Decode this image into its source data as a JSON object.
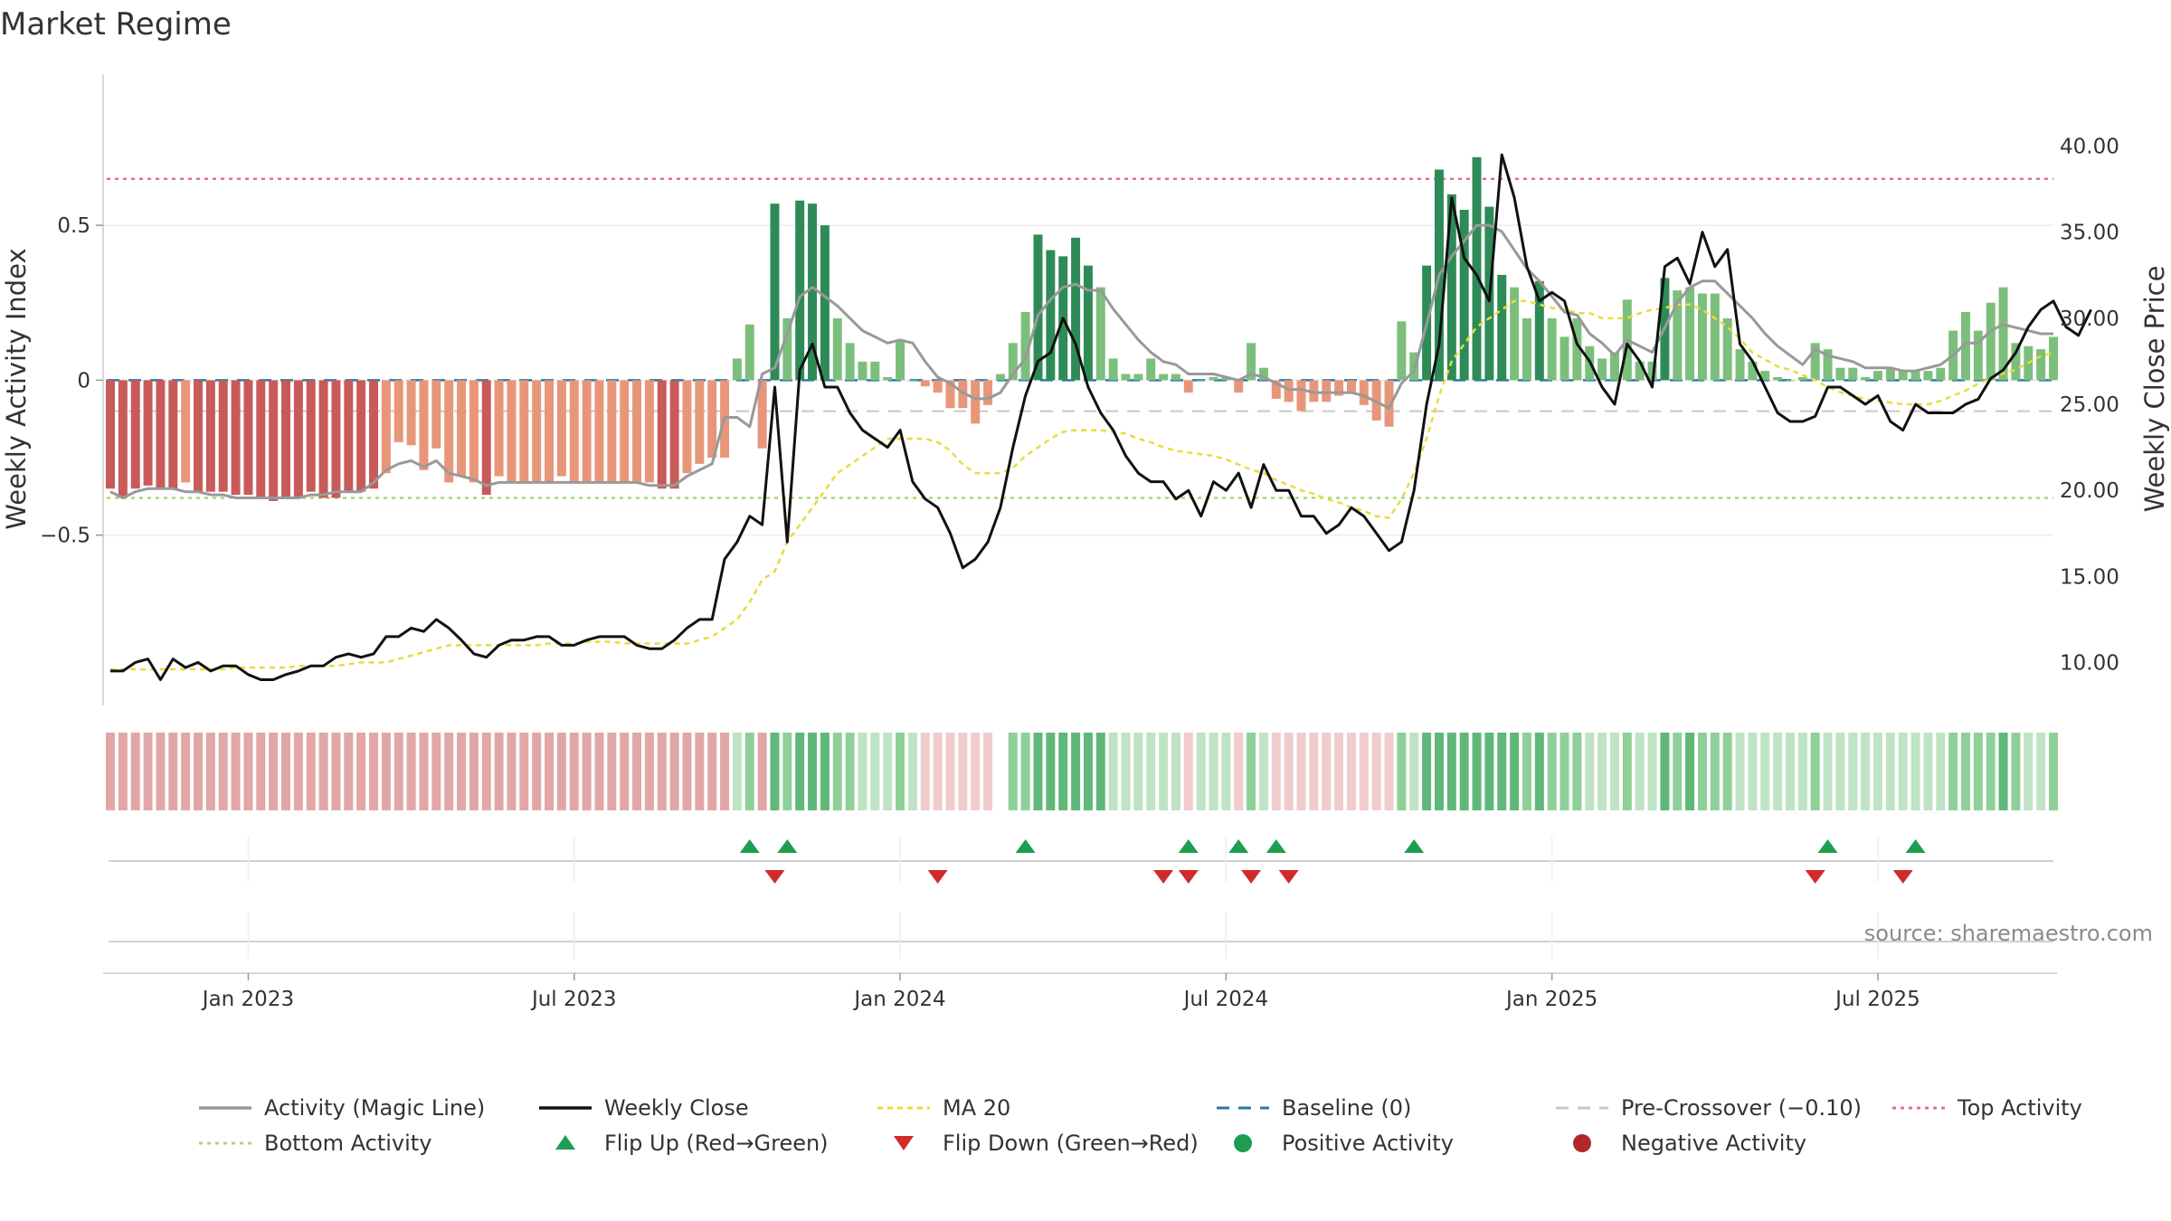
{
  "chart_data": {
    "type": "bar",
    "title": "Market Regime",
    "source": "source: sharemaestro.com",
    "ylabel_left": "Weekly Activity Index",
    "ylabel_right": "Weekly Close Price",
    "y_left_ticks": [
      {
        "v": 0.5,
        "label": "0.5"
      },
      {
        "v": 0,
        "label": "0"
      },
      {
        "v": -0.5,
        "label": "−0.5"
      }
    ],
    "y_right_ticks": [
      {
        "v": 40,
        "label": "40.00"
      },
      {
        "v": 35,
        "label": "35.00"
      },
      {
        "v": 30,
        "label": "30.00"
      },
      {
        "v": 25,
        "label": "25.00"
      },
      {
        "v": 20,
        "label": "20.00"
      },
      {
        "v": 15,
        "label": "15.00"
      },
      {
        "v": 10,
        "label": "10.00"
      }
    ],
    "x_ticks": [
      "Jan 2023",
      "Jul 2023",
      "Jan 2024",
      "Jul 2024",
      "Jan 2025",
      "Jul 2025"
    ],
    "x_tick_index": [
      11,
      37,
      63,
      89,
      115,
      141
    ],
    "ylim_left": [
      -1.05,
      0.95
    ],
    "ylim_right": [
      7.5,
      43.5
    ],
    "reference_lines": {
      "top_activity": 0.65,
      "bottom_activity": -0.38,
      "pre_crossover": -0.1,
      "baseline": 0
    },
    "activity": [
      -0.35,
      -0.38,
      -0.35,
      -0.34,
      -0.35,
      -0.35,
      -0.33,
      -0.36,
      -0.36,
      -0.36,
      -0.37,
      -0.37,
      -0.38,
      -0.39,
      -0.38,
      -0.38,
      -0.36,
      -0.38,
      -0.38,
      -0.36,
      -0.36,
      -0.35,
      -0.3,
      -0.2,
      -0.21,
      -0.29,
      -0.22,
      -0.33,
      -0.31,
      -0.33,
      -0.37,
      -0.31,
      -0.33,
      -0.33,
      -0.33,
      -0.33,
      -0.31,
      -0.33,
      -0.33,
      -0.33,
      -0.33,
      -0.33,
      -0.33,
      -0.33,
      -0.35,
      -0.35,
      -0.3,
      -0.27,
      -0.25,
      -0.25,
      0.07,
      0.18,
      -0.22,
      0.57,
      0.2,
      0.58,
      0.57,
      0.5,
      0.2,
      0.12,
      0.06,
      0.06,
      0.01,
      0.13,
      0,
      -0.02,
      -0.04,
      -0.09,
      -0.09,
      -0.14,
      -0.08,
      0.02,
      0.12,
      0.22,
      0.47,
      0.42,
      0.4,
      0.46,
      0.37,
      0.3,
      0.07,
      0.02,
      0.02,
      0.07,
      0.02,
      0.02,
      -0.04,
      0,
      0.01,
      0.01,
      -0.04,
      0.12,
      0.04,
      -0.06,
      -0.07,
      -0.1,
      -0.07,
      -0.07,
      -0.05,
      -0.04,
      -0.08,
      -0.13,
      -0.15,
      0.19,
      0.09,
      0.37,
      0.68,
      0.6,
      0.55,
      0.72,
      0.56,
      0.34,
      0.3,
      0.2,
      0.32,
      0.2,
      0.14,
      0.2,
      0.11,
      0.07,
      0.09,
      0.26,
      0.06,
      0.06,
      0.33,
      0.29,
      0.3,
      0.28,
      0.28,
      0.2,
      0.1,
      0.06,
      0.03,
      0.01,
      0,
      0.01,
      0.12,
      0.1,
      0.04,
      0.04,
      0.01,
      0.03,
      0.04,
      0.03,
      0.03,
      0.03,
      0.04,
      0.16,
      0.22,
      0.16,
      0.25,
      0.3,
      0.12,
      0.11,
      0.1,
      0.14
    ],
    "magic_line": [
      -0.36,
      -0.38,
      -0.36,
      -0.35,
      -0.35,
      -0.35,
      -0.36,
      -0.36,
      -0.37,
      -0.37,
      -0.38,
      -0.38,
      -0.38,
      -0.38,
      -0.38,
      -0.38,
      -0.37,
      -0.37,
      -0.36,
      -0.36,
      -0.36,
      -0.33,
      -0.29,
      -0.27,
      -0.26,
      -0.28,
      -0.26,
      -0.3,
      -0.31,
      -0.32,
      -0.34,
      -0.33,
      -0.33,
      -0.33,
      -0.33,
      -0.33,
      -0.33,
      -0.33,
      -0.33,
      -0.33,
      -0.33,
      -0.33,
      -0.33,
      -0.34,
      -0.34,
      -0.34,
      -0.31,
      -0.29,
      -0.27,
      -0.12,
      -0.12,
      -0.15,
      0.02,
      0.04,
      0.15,
      0.27,
      0.3,
      0.27,
      0.24,
      0.2,
      0.16,
      0.14,
      0.12,
      0.13,
      0.12,
      0.06,
      0.01,
      -0.01,
      -0.04,
      -0.06,
      -0.06,
      -0.04,
      0.02,
      0.07,
      0.21,
      0.26,
      0.3,
      0.31,
      0.29,
      0.29,
      0.23,
      0.18,
      0.13,
      0.09,
      0.06,
      0.05,
      0.02,
      0.02,
      0.02,
      0.01,
      0,
      0.02,
      0.01,
      -0.01,
      -0.03,
      -0.03,
      -0.04,
      -0.04,
      -0.04,
      -0.04,
      -0.05,
      -0.07,
      -0.09,
      -0.01,
      0.03,
      0.18,
      0.34,
      0.4,
      0.45,
      0.5,
      0.5,
      0.48,
      0.42,
      0.36,
      0.32,
      0.27,
      0.22,
      0.21,
      0.15,
      0.12,
      0.08,
      0.13,
      0.11,
      0.09,
      0.17,
      0.25,
      0.3,
      0.32,
      0.32,
      0.28,
      0.24,
      0.2,
      0.15,
      0.11,
      0.08,
      0.05,
      0.1,
      0.08,
      0.07,
      0.06,
      0.04,
      0.04,
      0.04,
      0.03,
      0.03,
      0.04,
      0.05,
      0.08,
      0.12,
      0.12,
      0.16,
      0.18,
      0.17,
      0.16,
      0.15,
      0.15
    ],
    "weekly_close": [
      9.5,
      9.5,
      10,
      10.2,
      9,
      10.2,
      9.7,
      10,
      9.5,
      9.8,
      9.8,
      9.3,
      9,
      9,
      9.3,
      9.5,
      9.8,
      9.8,
      10.3,
      10.5,
      10.3,
      10.5,
      11.5,
      11.5,
      12,
      11.8,
      12.5,
      12,
      11.3,
      10.5,
      10.3,
      11,
      11.3,
      11.3,
      11.5,
      11.5,
      11,
      11,
      11.3,
      11.5,
      11.5,
      11.5,
      11,
      10.8,
      10.8,
      11.3,
      12,
      12.5,
      12.5,
      16,
      17,
      18.5,
      18,
      26,
      17,
      27,
      28.5,
      26,
      26,
      24.5,
      23.5,
      23,
      22.5,
      23.5,
      20.5,
      19.5,
      19,
      17.5,
      15.5,
      16,
      17,
      19,
      22.5,
      25.5,
      27.5,
      28,
      30,
      28.5,
      26,
      24.5,
      23.5,
      22,
      21,
      20.5,
      20.5,
      19.5,
      20,
      18.5,
      20.5,
      20,
      21,
      19,
      21.5,
      20,
      20,
      18.5,
      18.5,
      17.5,
      18,
      19,
      18.5,
      17.5,
      16.5,
      17,
      20,
      25,
      28.5,
      37,
      33.5,
      32.5,
      31,
      39.5,
      37,
      33,
      31,
      31.5,
      31,
      28.5,
      27.5,
      26,
      25,
      28.5,
      27.5,
      26,
      33,
      33.5,
      32,
      35,
      33,
      34,
      28.5,
      27.5,
      26,
      24.5,
      24,
      24,
      24.3,
      26,
      26,
      25.5,
      25,
      25.5,
      24,
      23.5,
      25,
      24.5,
      24.5,
      24.5,
      25,
      25.3,
      26.5,
      27,
      28,
      29.5,
      30.5,
      31,
      29.5,
      29,
      30.5
    ],
    "ma20": [
      9.6,
      9.6,
      9.6,
      9.6,
      9.6,
      9.6,
      9.6,
      9.6,
      9.6,
      9.6,
      9.7,
      9.7,
      9.7,
      9.7,
      9.7,
      9.8,
      9.8,
      9.8,
      9.8,
      9.9,
      10,
      10,
      10,
      10.2,
      10.4,
      10.6,
      10.8,
      11,
      11,
      11,
      11,
      11,
      11,
      11,
      11,
      11.1,
      11.1,
      11.1,
      11.2,
      11.2,
      11.2,
      11.1,
      11.1,
      11.1,
      11.1,
      11.1,
      11.1,
      11.3,
      11.5,
      12,
      12.5,
      13.5,
      14.8,
      15.3,
      17,
      18,
      19,
      20,
      21,
      21.5,
      22,
      22.5,
      23,
      23,
      23,
      23,
      22.8,
      22.3,
      21.5,
      21,
      21,
      21,
      21.3,
      22,
      22.5,
      23,
      23.4,
      23.5,
      23.5,
      23.5,
      23.4,
      23.3,
      23,
      22.8,
      22.5,
      22.3,
      22.2,
      22.1,
      22,
      21.8,
      21.5,
      21.2,
      21,
      20.6,
      20.3,
      20,
      19.8,
      19.5,
      19.3,
      19,
      18.8,
      18.5,
      18.4,
      19.5,
      21,
      23,
      25.5,
      27.5,
      28.5,
      29.5,
      30,
      30.5,
      31,
      31,
      30.8,
      30.6,
      30.5,
      30.3,
      30.3,
      30,
      30,
      30,
      30.3,
      30.5,
      30.6,
      30.8,
      30.8,
      30.5,
      30,
      29.5,
      28.8,
      28,
      27.6,
      27.2,
      27,
      26.7,
      26.4,
      26,
      25.7,
      25.5,
      25.3,
      25.2,
      25.1,
      25,
      25,
      25,
      25.2,
      25.5,
      25.8,
      26.2,
      26.5,
      26.8,
      27,
      27.4,
      27.8,
      28
    ],
    "flip_up_index": [
      51,
      54,
      73,
      86,
      90,
      93,
      104,
      137,
      144
    ],
    "flip_down_index": [
      53,
      66,
      84,
      86,
      91,
      94,
      136,
      143
    ],
    "legend": [
      "Activity (Magic Line)",
      "Weekly Close",
      "MA 20",
      "Baseline (0)",
      "Pre-Crossover (−0.10)",
      "Top Activity",
      "Bottom Activity",
      "Flip Up (Red→Green)",
      "Flip Down (Green→Red)",
      "Positive Activity",
      "Negative Activity"
    ],
    "legend_placement": "bottom",
    "grid": true
  },
  "colors": {
    "magic_line": "#999999",
    "weekly_close": "#111111",
    "ma20": "#e8dc3a",
    "baseline": "#2a7aa8",
    "pre_crossover": "#c8c8c8",
    "top_activity": "#e0708a",
    "bottom_activity": "#a8d878",
    "flip_up": "#1e9e50",
    "flip_down": "#d02a2a",
    "positive": "#1e9e50",
    "negative": "#b02828"
  }
}
